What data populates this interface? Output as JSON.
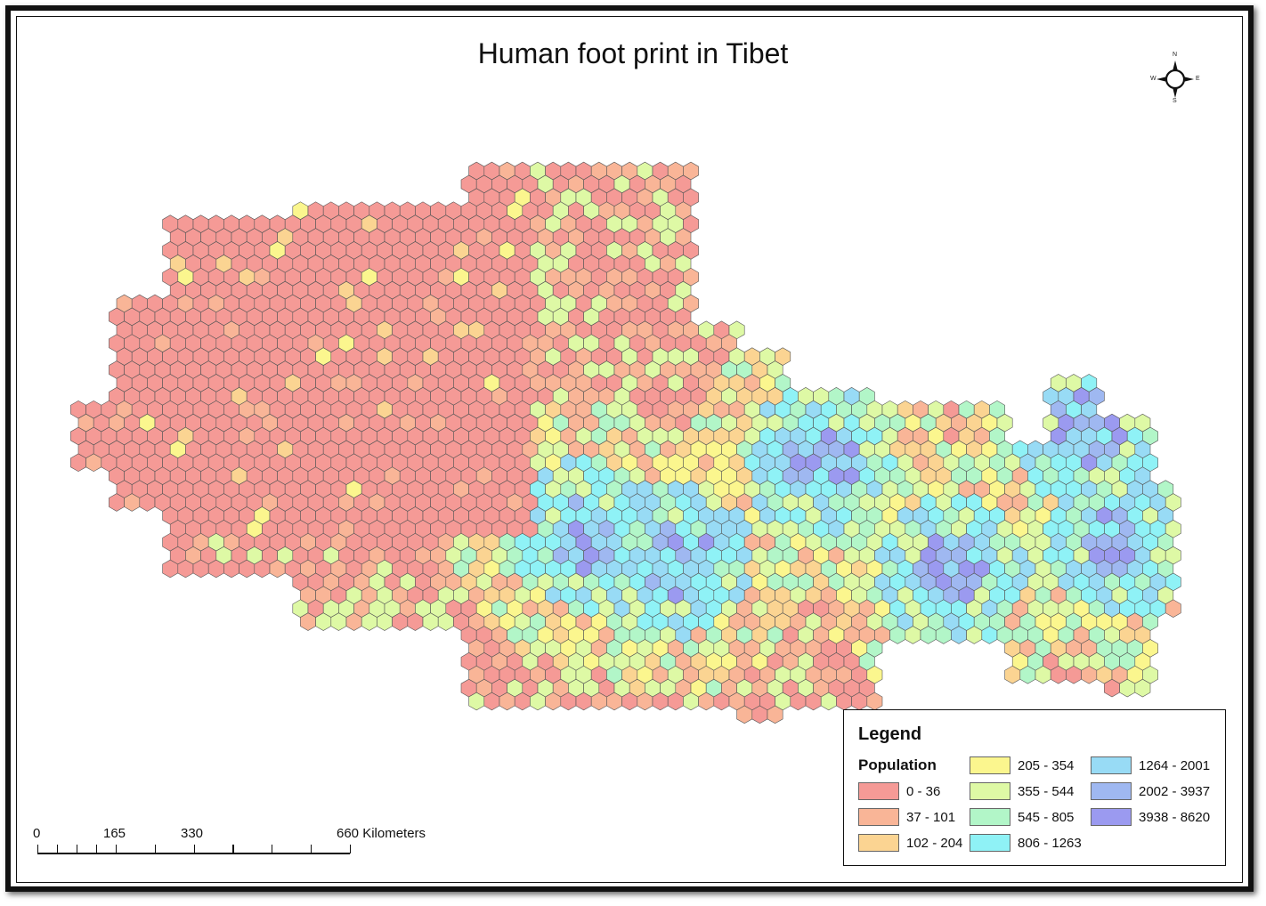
{
  "map": {
    "title": "Human foot print in Tibet",
    "compass": {
      "n": "N",
      "e": "E",
      "s": "S",
      "w": "W"
    },
    "scale": {
      "labels": [
        "0",
        "165",
        "330",
        "660 Kilometers"
      ],
      "ticks_km": [
        0,
        41.25,
        82.5,
        123.75,
        165,
        247.5,
        330,
        412.5,
        495,
        577.5,
        660
      ]
    },
    "legend": {
      "title": "Legend",
      "subtitle": "Population",
      "classes": [
        {
          "label": "0 - 36",
          "color": "#f59a96"
        },
        {
          "label": "37 - 101",
          "color": "#f9b597"
        },
        {
          "label": "102 - 204",
          "color": "#fbd492"
        },
        {
          "label": "205 - 354",
          "color": "#fbf68e"
        },
        {
          "label": "355 - 544",
          "color": "#def9a5"
        },
        {
          "label": "545 - 805",
          "color": "#b2f6c8"
        },
        {
          "label": "806 - 1263",
          "color": "#8ff2f6"
        },
        {
          "label": "1264 - 2001",
          "color": "#98dbf5"
        },
        {
          "label": "2002 - 3937",
          "color": "#9fb8f1"
        },
        {
          "label": "3938 - 8620",
          "color": "#9b9af0"
        }
      ]
    }
  }
}
